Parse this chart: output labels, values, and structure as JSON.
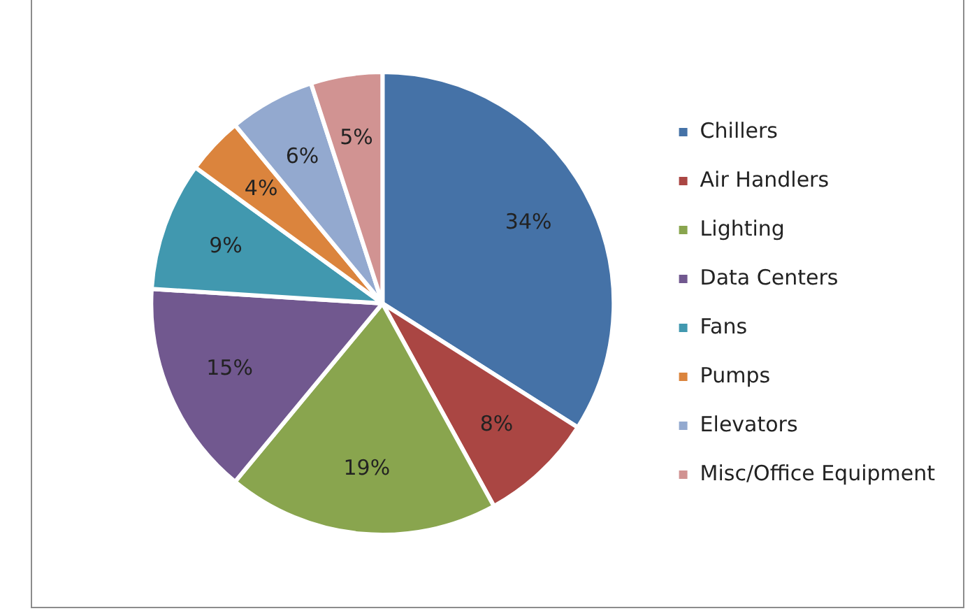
{
  "chart_data": {
    "type": "pie",
    "categories": [
      "Chillers",
      "Air Handlers",
      "Lighting",
      "Data Centers",
      "Fans",
      "Pumps",
      "Elevators",
      "Misc/Office Equipment"
    ],
    "values": [
      34,
      8,
      19,
      15,
      9,
      4,
      6,
      5
    ],
    "colors": [
      "#4572a7",
      "#aa4643",
      "#89a54e",
      "#71588f",
      "#4198af",
      "#db843d",
      "#93a9cf",
      "#d19392"
    ],
    "value_labels": [
      "34%",
      "8%",
      "19%",
      "15%",
      "9%",
      "4%",
      "6%",
      "5%"
    ],
    "legend": "right"
  }
}
